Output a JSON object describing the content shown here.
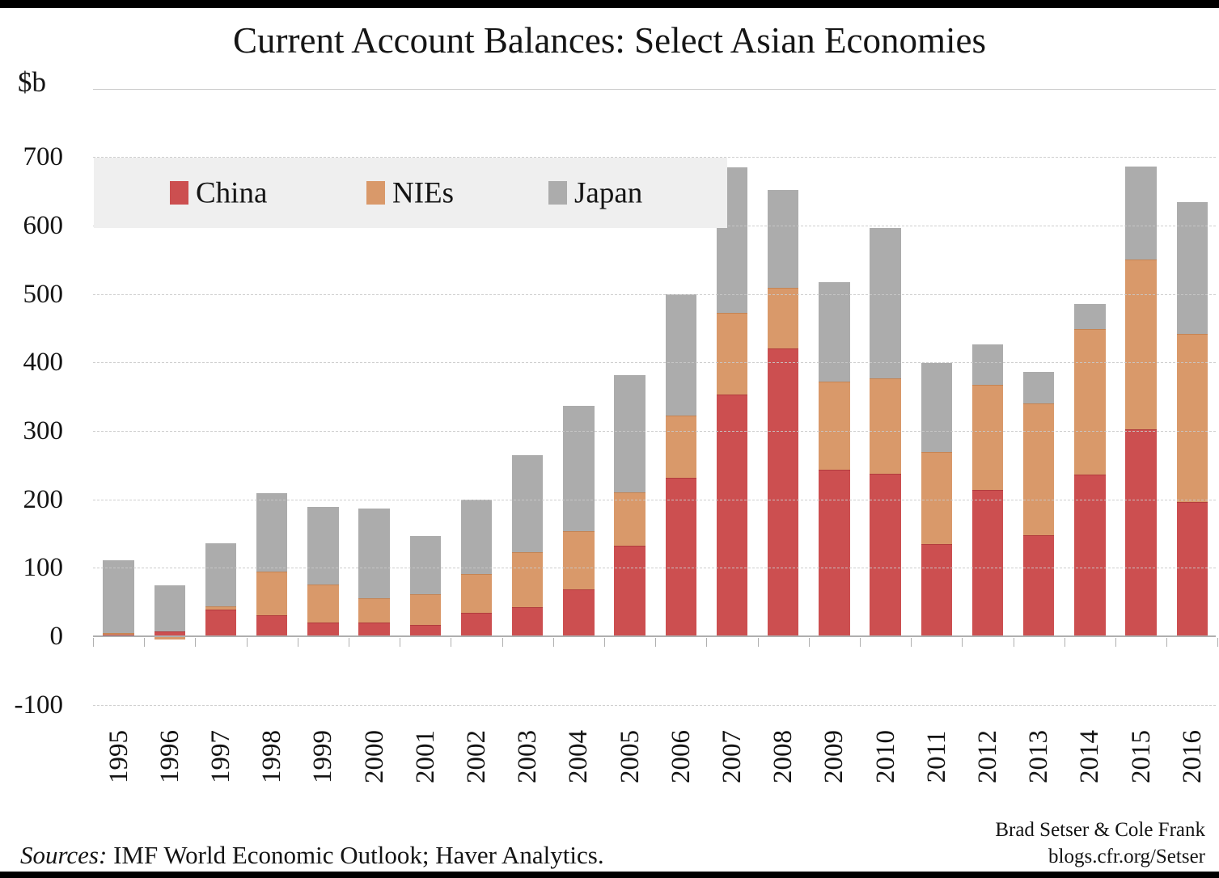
{
  "title": "Current Account Balances: Select Asian Economies",
  "y_axis_unit": "$b",
  "legend": {
    "items": [
      {
        "label": "China",
        "color": "#CC4F50"
      },
      {
        "label": "NIEs",
        "color": "#D9996A"
      },
      {
        "label": "Japan",
        "color": "#ACACAC"
      }
    ]
  },
  "footer": {
    "sources_label": "Sources:",
    "sources_text": " IMF World Economic Outlook; Haver Analytics."
  },
  "attribution": {
    "authors": "Brad Setser & Cole Frank",
    "site": "blogs.cfr.org/Setser"
  },
  "chart_data": {
    "type": "bar",
    "stacked": true,
    "title": "Current Account Balances: Select Asian Economies",
    "ylabel": "$b",
    "ylim": [
      -100,
      800
    ],
    "yticks": [
      700,
      600,
      500,
      400,
      300,
      200,
      100,
      0,
      -100
    ],
    "grid": true,
    "legend_position": "top-left",
    "categories": [
      "1995",
      "1996",
      "1997",
      "1998",
      "1999",
      "2000",
      "2001",
      "2002",
      "2003",
      "2004",
      "2005",
      "2006",
      "2007",
      "2008",
      "2009",
      "2010",
      "2011",
      "2012",
      "2013",
      "2014",
      "2015",
      "2016"
    ],
    "series": [
      {
        "name": "China",
        "color": "#CC4F50",
        "values": [
          2,
          7,
          39,
          31,
          20,
          20,
          16,
          34,
          42,
          68,
          132,
          232,
          353,
          420,
          243,
          237,
          135,
          214,
          148,
          236,
          302,
          196
        ]
      },
      {
        "name": "NIEs",
        "color": "#D9996A",
        "values": [
          3,
          -5,
          5,
          64,
          55,
          35,
          45,
          57,
          81,
          86,
          78,
          90,
          120,
          89,
          129,
          140,
          134,
          153,
          192,
          213,
          248,
          246
        ]
      },
      {
        "name": "Japan",
        "color": "#ACACAC",
        "values": [
          106,
          67,
          92,
          114,
          114,
          132,
          85,
          109,
          141,
          183,
          172,
          177,
          212,
          143,
          145,
          219,
          130,
          59,
          46,
          36,
          136,
          192
        ]
      }
    ]
  }
}
